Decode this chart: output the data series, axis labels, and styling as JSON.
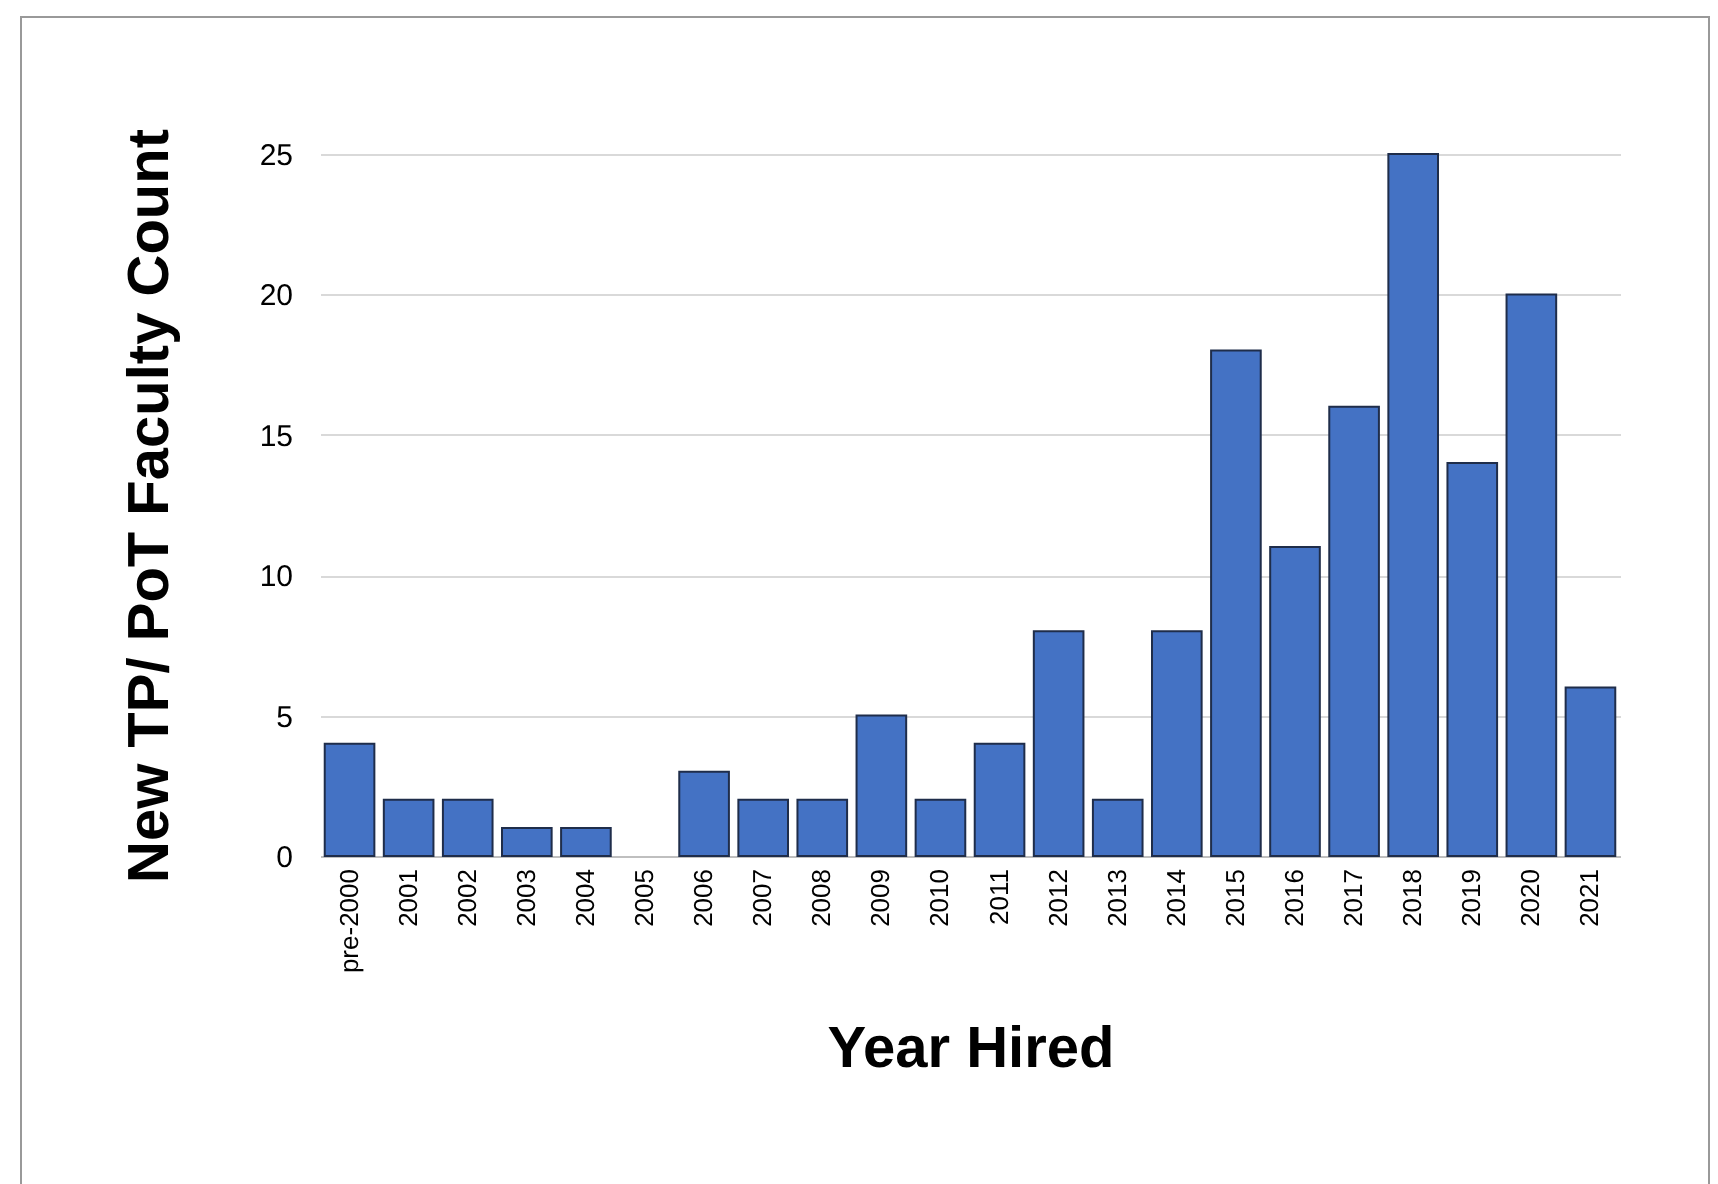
{
  "chart_data": {
    "type": "bar",
    "xlabel": "Year Hired",
    "ylabel": "New TP/ PoT Faculty Count",
    "categories": [
      "pre-2000",
      "2001",
      "2002",
      "2003",
      "2004",
      "2005",
      "2006",
      "2007",
      "2008",
      "2009",
      "2010",
      "2011",
      "2012",
      "2013",
      "2014",
      "2015",
      "2016",
      "2017",
      "2018",
      "2019",
      "2020",
      "2021"
    ],
    "values": [
      4,
      2,
      2,
      1,
      1,
      0,
      3,
      2,
      2,
      5,
      2,
      4,
      8,
      2,
      8,
      18,
      11,
      16,
      25,
      14,
      20,
      6
    ],
    "color": "#4472c4",
    "ylim": [
      0,
      25
    ],
    "yticks": [
      0,
      5,
      10,
      15,
      20,
      25
    ],
    "grid": "y"
  }
}
